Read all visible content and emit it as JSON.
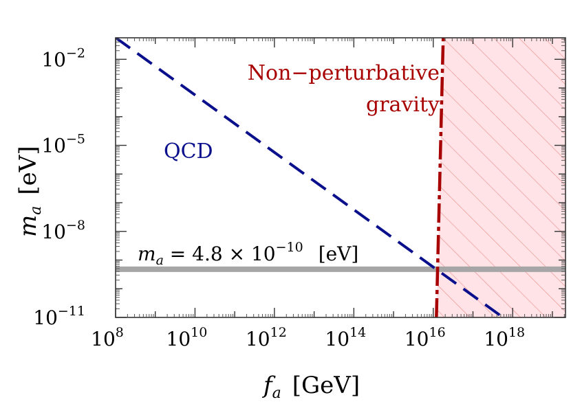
{
  "chart_data": {
    "type": "line",
    "x_axis": {
      "label_var": "f",
      "label_sub": "a",
      "label_unit": "[GeV]",
      "scale": "log",
      "range": [
        100000000,
        1000000000000000000000000
      ],
      "ticks": [
        {
          "base": "10",
          "exp": "8",
          "value": 100000000
        },
        {
          "base": "10",
          "exp": "10",
          "value": 10000000000
        },
        {
          "base": "10",
          "exp": "12",
          "value": 1000000000000
        },
        {
          "base": "10",
          "exp": "14",
          "value": 100000000000000
        },
        {
          "base": "10",
          "exp": "16",
          "value": 10000000000000000
        },
        {
          "base": "10",
          "exp": "18",
          "value": 1000000000000000000
        }
      ]
    },
    "y_axis": {
      "label_var": "m",
      "label_sub": "a",
      "label_unit": "[eV]",
      "scale": "log",
      "range": [
        1e-11,
        0.1
      ],
      "ticks": [
        {
          "base": "10",
          "exp": "−11",
          "value": 1e-11
        },
        {
          "base": "10",
          "exp": "−8",
          "value": 1e-08
        },
        {
          "base": "10",
          "exp": "−5",
          "value": 1e-05
        },
        {
          "base": "10",
          "exp": "−2",
          "value": 0.01
        }
      ]
    },
    "series": [
      {
        "name": "QCD",
        "style": "dashed",
        "color": "#0a0f8c",
        "points": [
          {
            "x": 100000000,
            "y": 0.057
          },
          {
            "x": 1000000000000000000,
            "y": 5.7e-12
          }
        ]
      }
    ],
    "regions": [
      {
        "name": "Non−perturbative",
        "name_line2": "gravity",
        "color": "#a80000",
        "fill": "#ffe3e6",
        "hatch": "#e88a8a",
        "boundary": [
          {
            "x": 12000000000000000,
            "y": 1e-11
          },
          {
            "x": 18000000000000000,
            "y": 0.1
          }
        ]
      }
    ],
    "hlines": [
      {
        "y": 4.8e-10,
        "color": "#a6a6a6",
        "label_var": "m",
        "label_sub": "a",
        "label_eq": " = 4.8 × 10",
        "label_exp": "−10",
        "label_unit": "[eV]"
      }
    ],
    "grid": false,
    "legend": "none"
  }
}
